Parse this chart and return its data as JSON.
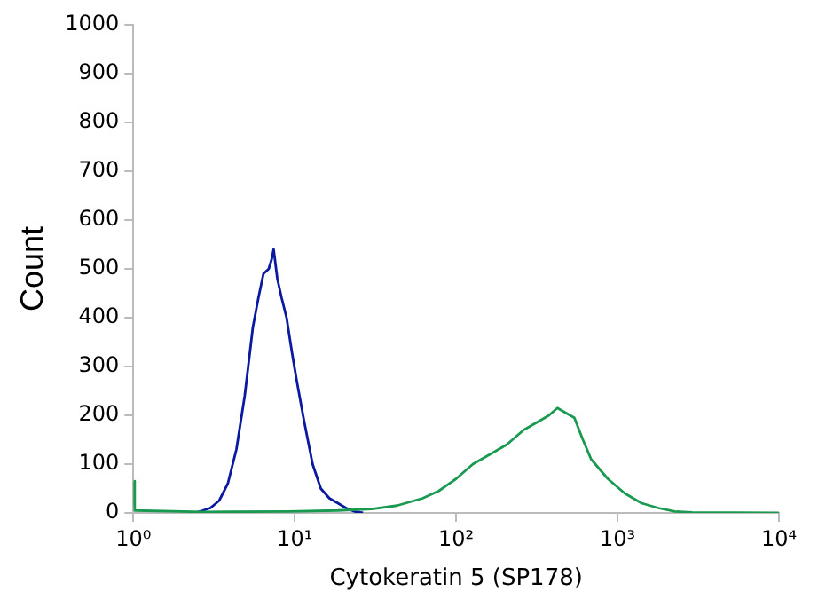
{
  "chart_data": {
    "type": "line",
    "xlabel": "Cytokeratin 5 (SP178)",
    "ylabel": "Count",
    "log": "x",
    "xlim": [
      1,
      10000
    ],
    "xticks": [
      {
        "value": 1,
        "label": "10⁰"
      },
      {
        "value": 10,
        "label": "10¹"
      },
      {
        "value": 100,
        "label": "10²"
      },
      {
        "value": 1000,
        "label": "10³"
      },
      {
        "value": 10000,
        "label": "10⁴"
      }
    ],
    "ylim": [
      0,
      1000
    ],
    "yticks": [
      0,
      100,
      200,
      300,
      400,
      500,
      600,
      700,
      800,
      900,
      1000
    ],
    "grid": false,
    "legend": false,
    "marker": "none",
    "line_style": "solid",
    "series": [
      {
        "color": "#1a9a50",
        "x": [
          1,
          1.02,
          2.7,
          9,
          18.5,
          30,
          43,
          62,
          78,
          100,
          127,
          162,
          206,
          262,
          334,
          376,
          424,
          478,
          540,
          610,
          686,
          870,
          1110,
          1410,
          1790,
          2270,
          2900,
          10000
        ],
        "values": [
          65,
          5,
          2,
          3,
          5,
          8,
          15,
          30,
          45,
          70,
          100,
          120,
          140,
          170,
          190,
          200,
          215,
          205,
          195,
          150,
          110,
          70,
          40,
          20,
          10,
          3,
          1,
          0
        ]
      },
      {
        "color": "#0a1aa0",
        "x": [
          2.4,
          2.7,
          3.0,
          3.4,
          3.85,
          4.35,
          4.9,
          5.5,
          5.95,
          6.4,
          6.9,
          7.2,
          7.4,
          7.8,
          8.3,
          8.9,
          9.6,
          10.3,
          11.4,
          12.9,
          14.5,
          16.4,
          18.5,
          20.8,
          23.5,
          26.5
        ],
        "values": [
          0,
          5,
          10,
          25,
          60,
          130,
          240,
          380,
          440,
          490,
          500,
          520,
          540,
          480,
          440,
          400,
          330,
          270,
          190,
          100,
          50,
          30,
          20,
          10,
          3,
          0
        ]
      }
    ]
  }
}
